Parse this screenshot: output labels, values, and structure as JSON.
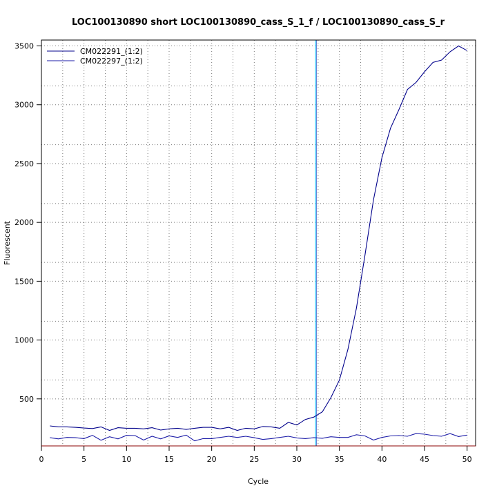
{
  "chart_data": {
    "type": "line",
    "title": "LOC100130890 short LOC100130890_cass_S_1_f / LOC100130890_cass_S_r",
    "xlabel": "Cycle",
    "ylabel": "Fluorescent",
    "xlim": [
      0,
      51
    ],
    "ylim": [
      100,
      3550
    ],
    "xticks": [
      0,
      5,
      10,
      15,
      20,
      25,
      30,
      35,
      40,
      45,
      50
    ],
    "yticks": [
      500,
      1000,
      1500,
      2000,
      2500,
      3000,
      3500
    ],
    "x_gridlines": [
      2.5,
      7.5,
      12.5,
      17.5,
      22.5,
      27.5,
      32.5,
      37.5,
      42.5,
      47.5
    ],
    "y_gridlines": [
      500,
      660,
      1000,
      1160,
      1500,
      1660,
      2000,
      2160,
      2500,
      2660,
      3000,
      3160,
      3500
    ],
    "threshold_cycle": 32.2,
    "threshold_color": "#00bfff",
    "grid": true,
    "legend_position": "top-left",
    "x": [
      1,
      2,
      3,
      4,
      5,
      6,
      7,
      8,
      9,
      10,
      11,
      12,
      13,
      14,
      15,
      16,
      17,
      18,
      19,
      20,
      21,
      22,
      23,
      24,
      25,
      26,
      27,
      28,
      29,
      30,
      31,
      32,
      33,
      34,
      35,
      36,
      37,
      38,
      39,
      40,
      41,
      42,
      43,
      44,
      45,
      46,
      47,
      48,
      49,
      50
    ],
    "series": [
      {
        "name": "CM022291_(1:2)",
        "color": "#00008b",
        "values": [
          270,
          262,
          262,
          258,
          252,
          248,
          262,
          232,
          255,
          250,
          250,
          245,
          255,
          235,
          245,
          250,
          240,
          250,
          258,
          258,
          245,
          258,
          232,
          250,
          245,
          265,
          262,
          250,
          300,
          278,
          325,
          345,
          390,
          510,
          660,
          920,
          1270,
          1720,
          2190,
          2550,
          2800,
          2960,
          3130,
          3190,
          3280,
          3360,
          3380,
          3450,
          3500,
          3460
        ]
      },
      {
        "name": "CM022297_(1:2)",
        "color": "#1c1ca8",
        "values": [
          170,
          160,
          172,
          170,
          162,
          190,
          148,
          178,
          160,
          190,
          188,
          150,
          182,
          160,
          185,
          172,
          192,
          143,
          162,
          162,
          172,
          182,
          172,
          182,
          170,
          155,
          162,
          172,
          182,
          168,
          162,
          170,
          165,
          178,
          172,
          172,
          195,
          185,
          150,
          172,
          185,
          188,
          182,
          205,
          200,
          188,
          182,
          205,
          180,
          192
        ]
      }
    ]
  }
}
